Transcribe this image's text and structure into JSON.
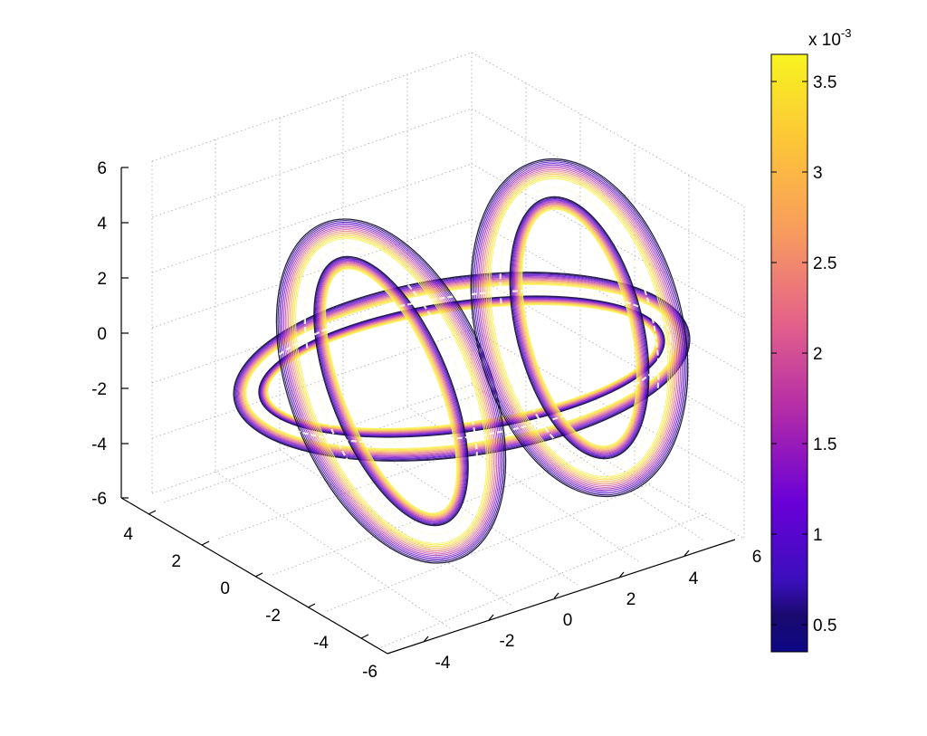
{
  "chart_data": {
    "type": "contour3d",
    "title": "",
    "xlabel": "",
    "ylabel": "",
    "zlabel": "",
    "xlim": [
      -5,
      6
    ],
    "ylim": [
      -6,
      5
    ],
    "zlim": [
      -6,
      6
    ],
    "x_ticks": [
      "-4",
      "-2",
      "0",
      "2",
      "4",
      "6"
    ],
    "y_ticks": [
      "4",
      "2",
      "0",
      "-2",
      "-4",
      "-6"
    ],
    "z_ticks": [
      "6",
      "4",
      "2",
      "0",
      "-2",
      "-4",
      "-6"
    ],
    "grid": true,
    "surface": "knotted tube (two rings linked through a horizontal loop)",
    "colorbar": {
      "colormap": "plasma",
      "range": [
        0.35,
        3.65
      ],
      "ticks": [
        "3.5",
        "3",
        "2.5",
        "2",
        "1.5",
        "1",
        "0.5"
      ],
      "exponent_label": "x 10",
      "exponent_power": "-3"
    }
  }
}
